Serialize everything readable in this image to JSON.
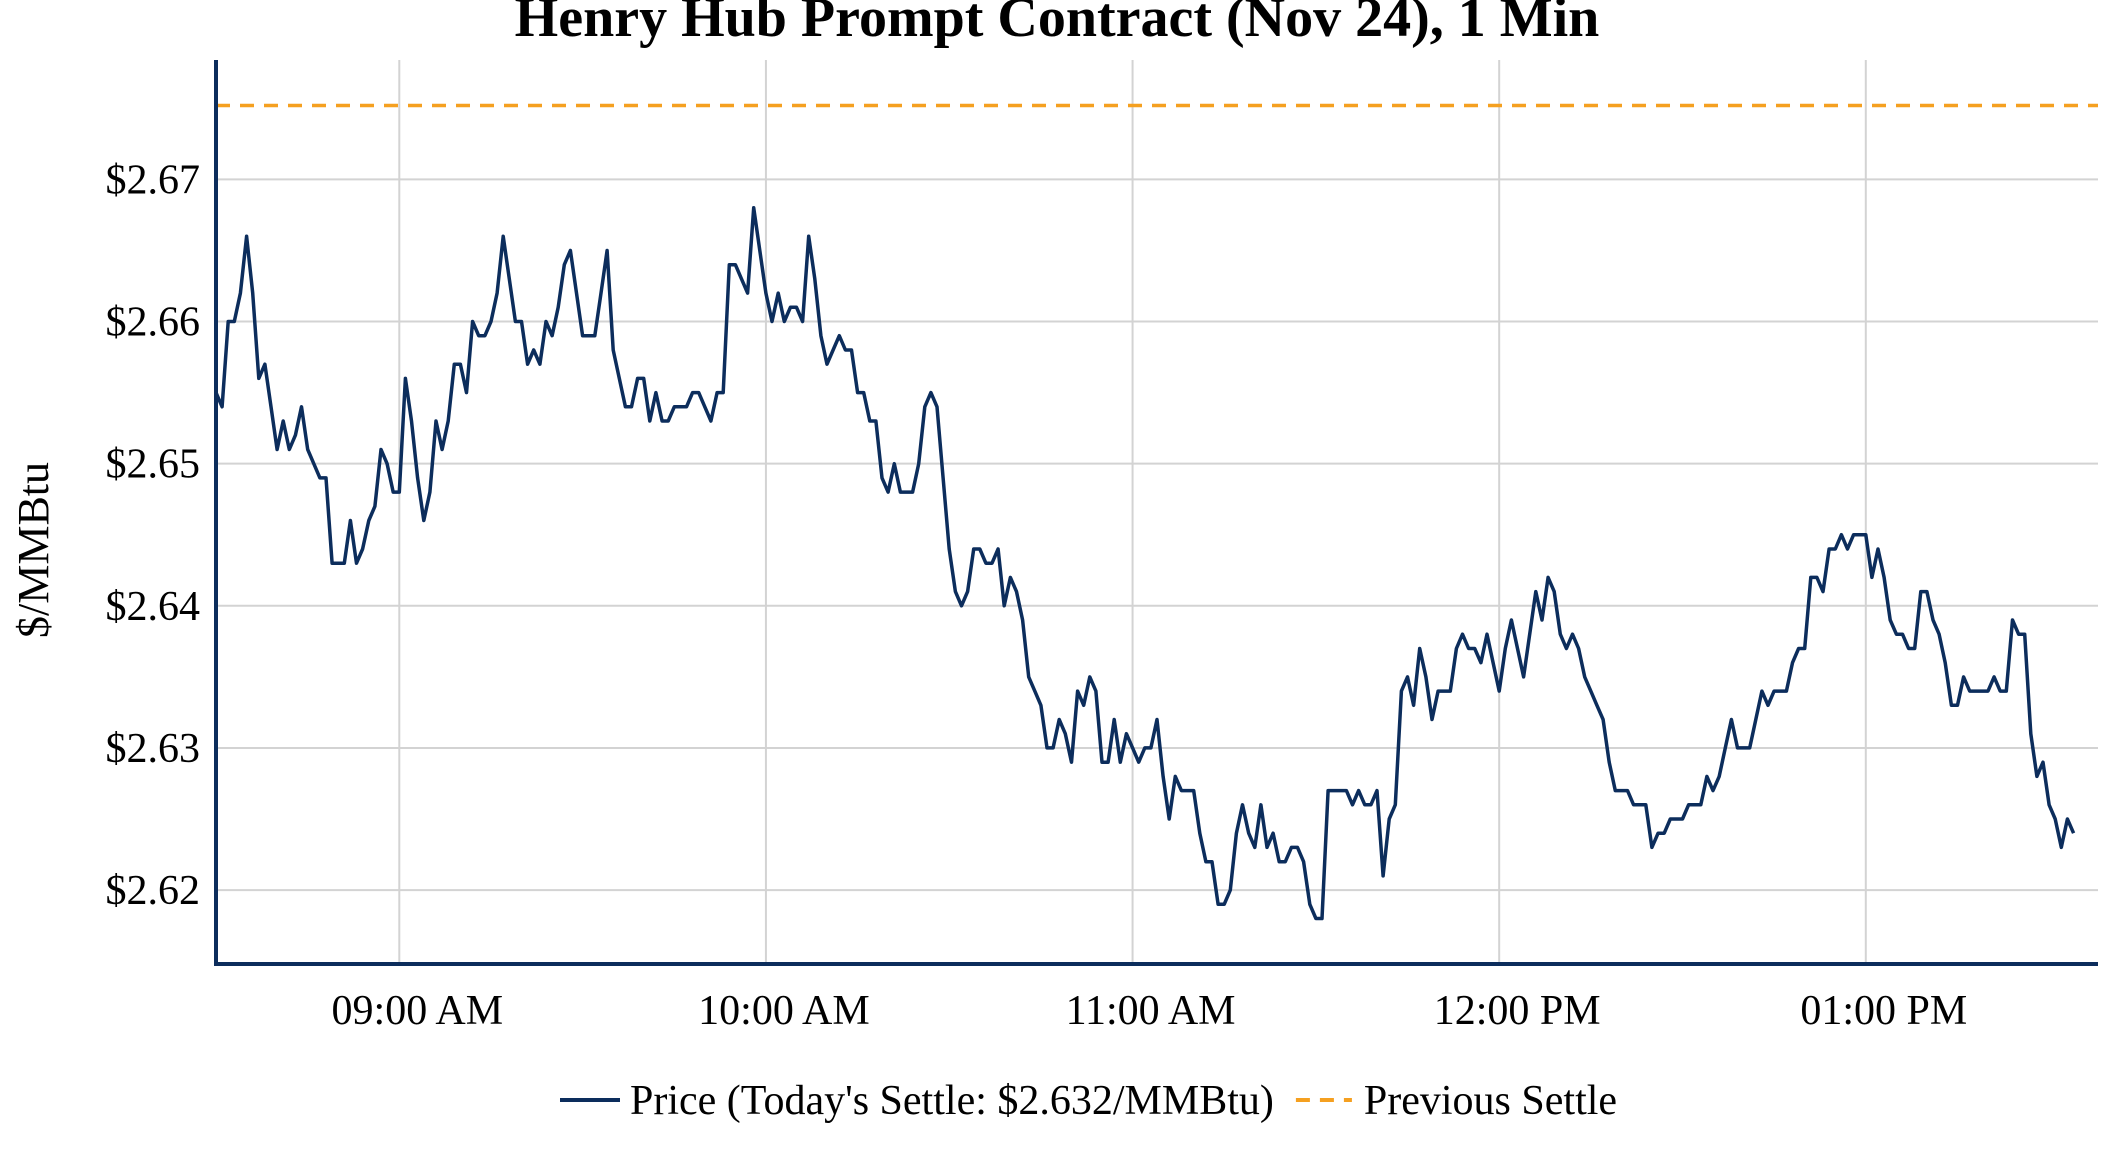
{
  "chart_data": {
    "type": "line",
    "title": "Henry Hub Prompt Contract (Nov 24), 1 Min",
    "xlabel": "",
    "ylabel": "$/MMBtu",
    "x_start": "08:30",
    "x_range": [
      "08:30",
      "13:38"
    ],
    "ylim": [
      2.6148,
      2.6784
    ],
    "y_ticks": [
      2.62,
      2.63,
      2.64,
      2.65,
      2.66,
      2.67
    ],
    "y_tick_labels": [
      "$2.62",
      "$2.63",
      "$2.64",
      "$2.65",
      "$2.66",
      "$2.67"
    ],
    "x_ticks": [
      "09:00",
      "10:00",
      "11:00",
      "12:00",
      "13:00"
    ],
    "x_tick_labels": [
      "09:00 AM",
      "10:00 AM",
      "11:00 AM",
      "12:00 PM",
      "01:00 PM"
    ],
    "grid": true,
    "legend_position": "bottom-center",
    "series": [
      {
        "name": "Price (Today's Settle: $2.632/MMBtu)",
        "color": "#0c2d5c",
        "style": "solid",
        "values": [
          2.655,
          2.654,
          2.66,
          2.66,
          2.662,
          2.666,
          2.662,
          2.656,
          2.657,
          2.654,
          2.651,
          2.653,
          2.651,
          2.652,
          2.654,
          2.651,
          2.65,
          2.649,
          2.649,
          2.643,
          2.643,
          2.643,
          2.646,
          2.643,
          2.644,
          2.646,
          2.647,
          2.651,
          2.65,
          2.648,
          2.648,
          2.656,
          2.653,
          2.649,
          2.646,
          2.648,
          2.653,
          2.651,
          2.653,
          2.657,
          2.657,
          2.655,
          2.66,
          2.659,
          2.659,
          2.66,
          2.662,
          2.666,
          2.663,
          2.66,
          2.66,
          2.657,
          2.658,
          2.657,
          2.66,
          2.659,
          2.661,
          2.664,
          2.665,
          2.662,
          2.659,
          2.659,
          2.659,
          2.662,
          2.665,
          2.658,
          2.656,
          2.654,
          2.654,
          2.656,
          2.656,
          2.653,
          2.655,
          2.653,
          2.653,
          2.654,
          2.654,
          2.654,
          2.655,
          2.655,
          2.654,
          2.653,
          2.655,
          2.655,
          2.664,
          2.664,
          2.663,
          2.662,
          2.668,
          2.665,
          2.662,
          2.66,
          2.662,
          2.66,
          2.661,
          2.661,
          2.66,
          2.666,
          2.663,
          2.659,
          2.657,
          2.658,
          2.659,
          2.658,
          2.658,
          2.655,
          2.655,
          2.653,
          2.653,
          2.649,
          2.648,
          2.65,
          2.648,
          2.648,
          2.648,
          2.65,
          2.654,
          2.655,
          2.654,
          2.649,
          2.644,
          2.641,
          2.64,
          2.641,
          2.644,
          2.644,
          2.643,
          2.643,
          2.644,
          2.64,
          2.642,
          2.641,
          2.639,
          2.635,
          2.634,
          2.633,
          2.63,
          2.63,
          2.632,
          2.631,
          2.629,
          2.634,
          2.633,
          2.635,
          2.634,
          2.629,
          2.629,
          2.632,
          2.629,
          2.631,
          2.63,
          2.629,
          2.63,
          2.63,
          2.632,
          2.628,
          2.625,
          2.628,
          2.627,
          2.627,
          2.627,
          2.624,
          2.622,
          2.622,
          2.619,
          2.619,
          2.62,
          2.624,
          2.626,
          2.624,
          2.623,
          2.626,
          2.623,
          2.624,
          2.622,
          2.622,
          2.623,
          2.623,
          2.622,
          2.619,
          2.618,
          2.618,
          2.627,
          2.627,
          2.627,
          2.627,
          2.626,
          2.627,
          2.626,
          2.626,
          2.627,
          2.621,
          2.625,
          2.626,
          2.634,
          2.635,
          2.633,
          2.637,
          2.635,
          2.632,
          2.634,
          2.634,
          2.634,
          2.637,
          2.638,
          2.637,
          2.637,
          2.636,
          2.638,
          2.636,
          2.634,
          2.637,
          2.639,
          2.637,
          2.635,
          2.638,
          2.641,
          2.639,
          2.642,
          2.641,
          2.638,
          2.637,
          2.638,
          2.637,
          2.635,
          2.634,
          2.633,
          2.632,
          2.629,
          2.627,
          2.627,
          2.627,
          2.626,
          2.626,
          2.626,
          2.623,
          2.624,
          2.624,
          2.625,
          2.625,
          2.625,
          2.626,
          2.626,
          2.626,
          2.628,
          2.627,
          2.628,
          2.63,
          2.632,
          2.63,
          2.63,
          2.63,
          2.632,
          2.634,
          2.633,
          2.634,
          2.634,
          2.634,
          2.636,
          2.637,
          2.637,
          2.642,
          2.642,
          2.641,
          2.644,
          2.644,
          2.645,
          2.644,
          2.645,
          2.645,
          2.645,
          2.642,
          2.644,
          2.642,
          2.639,
          2.638,
          2.638,
          2.637,
          2.637,
          2.641,
          2.641,
          2.639,
          2.638,
          2.636,
          2.633,
          2.633,
          2.635,
          2.634,
          2.634,
          2.634,
          2.634,
          2.635,
          2.634,
          2.634,
          2.639,
          2.638,
          2.638,
          2.631,
          2.628,
          2.629,
          2.626,
          2.625,
          2.623,
          2.625,
          2.624
        ]
      },
      {
        "name": "Previous Settle",
        "color": "#f5a020",
        "style": "dashed",
        "value": 2.6752
      }
    ]
  }
}
